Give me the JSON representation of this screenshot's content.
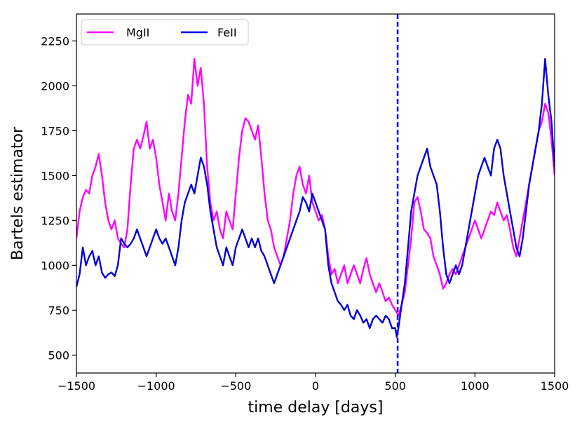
{
  "chart_data": {
    "type": "line",
    "xlabel": "time delay [days]",
    "ylabel": "Bartels estimator",
    "xlim": [
      -1500,
      1500
    ],
    "ylim": [
      400,
      2400
    ],
    "xticks": [
      -1500,
      -1000,
      -500,
      0,
      500,
      1000,
      1500
    ],
    "xtick_labels": [
      "−1500",
      "−1000",
      "−500",
      "0",
      "500",
      "1000",
      "1500"
    ],
    "yticks": [
      500,
      750,
      1000,
      1250,
      1500,
      1750,
      2000,
      2250
    ],
    "ytick_labels": [
      "500",
      "750",
      "1000",
      "1250",
      "1500",
      "1750",
      "2000",
      "2250"
    ],
    "grid": false,
    "legend": {
      "position": "top-left",
      "columns": 2
    },
    "vline": {
      "x": 515,
      "color": "#0000dd",
      "style": "dashed"
    },
    "series": [
      {
        "name": "MgII",
        "color": "#ff00ff",
        "points": [
          [
            -1500,
            1150
          ],
          [
            -1480,
            1300
          ],
          [
            -1460,
            1380
          ],
          [
            -1440,
            1420
          ],
          [
            -1420,
            1400
          ],
          [
            -1400,
            1500
          ],
          [
            -1380,
            1550
          ],
          [
            -1360,
            1620
          ],
          [
            -1340,
            1500
          ],
          [
            -1320,
            1350
          ],
          [
            -1300,
            1250
          ],
          [
            -1280,
            1200
          ],
          [
            -1260,
            1250
          ],
          [
            -1240,
            1150
          ],
          [
            -1220,
            1120
          ],
          [
            -1200,
            1100
          ],
          [
            -1180,
            1200
          ],
          [
            -1160,
            1450
          ],
          [
            -1140,
            1650
          ],
          [
            -1120,
            1700
          ],
          [
            -1100,
            1650
          ],
          [
            -1080,
            1720
          ],
          [
            -1060,
            1800
          ],
          [
            -1040,
            1650
          ],
          [
            -1020,
            1700
          ],
          [
            -1000,
            1600
          ],
          [
            -980,
            1450
          ],
          [
            -960,
            1350
          ],
          [
            -940,
            1250
          ],
          [
            -920,
            1400
          ],
          [
            -900,
            1300
          ],
          [
            -880,
            1250
          ],
          [
            -860,
            1400
          ],
          [
            -840,
            1600
          ],
          [
            -820,
            1800
          ],
          [
            -800,
            1950
          ],
          [
            -780,
            1900
          ],
          [
            -760,
            2150
          ],
          [
            -740,
            2000
          ],
          [
            -720,
            2100
          ],
          [
            -700,
            1900
          ],
          [
            -680,
            1550
          ],
          [
            -660,
            1350
          ],
          [
            -640,
            1250
          ],
          [
            -620,
            1300
          ],
          [
            -600,
            1200
          ],
          [
            -580,
            1150
          ],
          [
            -560,
            1300
          ],
          [
            -540,
            1250
          ],
          [
            -520,
            1200
          ],
          [
            -500,
            1400
          ],
          [
            -480,
            1600
          ],
          [
            -460,
            1750
          ],
          [
            -440,
            1820
          ],
          [
            -420,
            1800
          ],
          [
            -400,
            1750
          ],
          [
            -380,
            1700
          ],
          [
            -360,
            1780
          ],
          [
            -340,
            1600
          ],
          [
            -320,
            1400
          ],
          [
            -300,
            1250
          ],
          [
            -280,
            1200
          ],
          [
            -260,
            1100
          ],
          [
            -240,
            1050
          ],
          [
            -220,
            1000
          ],
          [
            -200,
            1050
          ],
          [
            -180,
            1150
          ],
          [
            -160,
            1250
          ],
          [
            -140,
            1400
          ],
          [
            -120,
            1500
          ],
          [
            -100,
            1550
          ],
          [
            -80,
            1450
          ],
          [
            -60,
            1400
          ],
          [
            -40,
            1500
          ],
          [
            -20,
            1350
          ],
          [
            0,
            1300
          ],
          [
            20,
            1250
          ],
          [
            40,
            1280
          ],
          [
            60,
            1200
          ],
          [
            80,
            1050
          ],
          [
            100,
            950
          ],
          [
            120,
            980
          ],
          [
            140,
            900
          ],
          [
            160,
            950
          ],
          [
            180,
            1000
          ],
          [
            200,
            900
          ],
          [
            220,
            950
          ],
          [
            240,
            1000
          ],
          [
            260,
            950
          ],
          [
            280,
            900
          ],
          [
            300,
            980
          ],
          [
            320,
            1040
          ],
          [
            340,
            950
          ],
          [
            360,
            900
          ],
          [
            380,
            850
          ],
          [
            400,
            900
          ],
          [
            420,
            850
          ],
          [
            440,
            800
          ],
          [
            460,
            820
          ],
          [
            480,
            780
          ],
          [
            500,
            750
          ],
          [
            520,
            720
          ],
          [
            540,
            780
          ],
          [
            560,
            850
          ],
          [
            580,
            1000
          ],
          [
            600,
            1150
          ],
          [
            620,
            1350
          ],
          [
            640,
            1380
          ],
          [
            660,
            1300
          ],
          [
            680,
            1200
          ],
          [
            700,
            1180
          ],
          [
            720,
            1150
          ],
          [
            740,
            1050
          ],
          [
            760,
            1000
          ],
          [
            780,
            950
          ],
          [
            800,
            870
          ],
          [
            820,
            900
          ],
          [
            840,
            950
          ],
          [
            860,
            980
          ],
          [
            880,
            950
          ],
          [
            900,
            1000
          ],
          [
            920,
            1050
          ],
          [
            940,
            1100
          ],
          [
            960,
            1150
          ],
          [
            980,
            1200
          ],
          [
            1000,
            1250
          ],
          [
            1020,
            1200
          ],
          [
            1040,
            1150
          ],
          [
            1060,
            1200
          ],
          [
            1080,
            1250
          ],
          [
            1100,
            1300
          ],
          [
            1120,
            1280
          ],
          [
            1140,
            1350
          ],
          [
            1160,
            1300
          ],
          [
            1180,
            1250
          ],
          [
            1200,
            1280
          ],
          [
            1220,
            1200
          ],
          [
            1240,
            1100
          ],
          [
            1260,
            1050
          ],
          [
            1280,
            1150
          ],
          [
            1300,
            1250
          ],
          [
            1320,
            1350
          ],
          [
            1340,
            1450
          ],
          [
            1360,
            1550
          ],
          [
            1380,
            1650
          ],
          [
            1400,
            1750
          ],
          [
            1420,
            1800
          ],
          [
            1440,
            1900
          ],
          [
            1460,
            1850
          ],
          [
            1480,
            1700
          ],
          [
            1500,
            1500
          ]
        ]
      },
      {
        "name": "FeII",
        "color": "#0000dd",
        "points": [
          [
            -1500,
            880
          ],
          [
            -1480,
            950
          ],
          [
            -1460,
            1100
          ],
          [
            -1440,
            1000
          ],
          [
            -1420,
            1050
          ],
          [
            -1400,
            1080
          ],
          [
            -1380,
            1000
          ],
          [
            -1360,
            1050
          ],
          [
            -1340,
            960
          ],
          [
            -1320,
            930
          ],
          [
            -1300,
            950
          ],
          [
            -1280,
            960
          ],
          [
            -1260,
            940
          ],
          [
            -1240,
            1000
          ],
          [
            -1220,
            1150
          ],
          [
            -1200,
            1120
          ],
          [
            -1180,
            1100
          ],
          [
            -1160,
            1120
          ],
          [
            -1140,
            1150
          ],
          [
            -1120,
            1200
          ],
          [
            -1100,
            1150
          ],
          [
            -1080,
            1100
          ],
          [
            -1060,
            1050
          ],
          [
            -1040,
            1100
          ],
          [
            -1020,
            1150
          ],
          [
            -1000,
            1200
          ],
          [
            -980,
            1150
          ],
          [
            -960,
            1120
          ],
          [
            -940,
            1150
          ],
          [
            -920,
            1100
          ],
          [
            -900,
            1050
          ],
          [
            -880,
            1000
          ],
          [
            -860,
            1100
          ],
          [
            -840,
            1250
          ],
          [
            -820,
            1350
          ],
          [
            -800,
            1400
          ],
          [
            -780,
            1450
          ],
          [
            -760,
            1400
          ],
          [
            -740,
            1500
          ],
          [
            -720,
            1600
          ],
          [
            -700,
            1550
          ],
          [
            -680,
            1450
          ],
          [
            -660,
            1300
          ],
          [
            -640,
            1200
          ],
          [
            -620,
            1100
          ],
          [
            -600,
            1050
          ],
          [
            -580,
            1000
          ],
          [
            -560,
            1100
          ],
          [
            -540,
            1050
          ],
          [
            -520,
            1000
          ],
          [
            -500,
            1100
          ],
          [
            -480,
            1150
          ],
          [
            -460,
            1200
          ],
          [
            -440,
            1150
          ],
          [
            -420,
            1100
          ],
          [
            -400,
            1150
          ],
          [
            -380,
            1100
          ],
          [
            -360,
            1150
          ],
          [
            -340,
            1080
          ],
          [
            -320,
            1050
          ],
          [
            -300,
            1000
          ],
          [
            -280,
            950
          ],
          [
            -260,
            900
          ],
          [
            -240,
            950
          ],
          [
            -220,
            1000
          ],
          [
            -200,
            1050
          ],
          [
            -180,
            1100
          ],
          [
            -160,
            1150
          ],
          [
            -140,
            1200
          ],
          [
            -120,
            1250
          ],
          [
            -100,
            1300
          ],
          [
            -80,
            1380
          ],
          [
            -60,
            1350
          ],
          [
            -40,
            1300
          ],
          [
            -20,
            1400
          ],
          [
            0,
            1350
          ],
          [
            20,
            1300
          ],
          [
            40,
            1250
          ],
          [
            60,
            1200
          ],
          [
            80,
            1000
          ],
          [
            100,
            900
          ],
          [
            120,
            850
          ],
          [
            140,
            800
          ],
          [
            160,
            780
          ],
          [
            180,
            750
          ],
          [
            200,
            780
          ],
          [
            220,
            720
          ],
          [
            240,
            700
          ],
          [
            260,
            750
          ],
          [
            280,
            720
          ],
          [
            300,
            680
          ],
          [
            320,
            700
          ],
          [
            340,
            650
          ],
          [
            360,
            700
          ],
          [
            380,
            720
          ],
          [
            400,
            700
          ],
          [
            420,
            680
          ],
          [
            440,
            720
          ],
          [
            460,
            700
          ],
          [
            480,
            650
          ],
          [
            500,
            650
          ],
          [
            510,
            600
          ],
          [
            520,
            650
          ],
          [
            540,
            780
          ],
          [
            560,
            900
          ],
          [
            580,
            1100
          ],
          [
            600,
            1300
          ],
          [
            620,
            1400
          ],
          [
            640,
            1500
          ],
          [
            660,
            1550
          ],
          [
            680,
            1600
          ],
          [
            700,
            1650
          ],
          [
            720,
            1550
          ],
          [
            740,
            1500
          ],
          [
            760,
            1450
          ],
          [
            780,
            1300
          ],
          [
            800,
            1100
          ],
          [
            820,
            950
          ],
          [
            840,
            900
          ],
          [
            860,
            950
          ],
          [
            880,
            1000
          ],
          [
            900,
            950
          ],
          [
            920,
            1000
          ],
          [
            940,
            1100
          ],
          [
            960,
            1200
          ],
          [
            980,
            1300
          ],
          [
            1000,
            1400
          ],
          [
            1020,
            1500
          ],
          [
            1040,
            1550
          ],
          [
            1060,
            1600
          ],
          [
            1080,
            1550
          ],
          [
            1100,
            1500
          ],
          [
            1120,
            1650
          ],
          [
            1140,
            1700
          ],
          [
            1160,
            1650
          ],
          [
            1180,
            1500
          ],
          [
            1200,
            1400
          ],
          [
            1220,
            1300
          ],
          [
            1240,
            1200
          ],
          [
            1260,
            1100
          ],
          [
            1280,
            1050
          ],
          [
            1300,
            1150
          ],
          [
            1320,
            1300
          ],
          [
            1340,
            1450
          ],
          [
            1360,
            1550
          ],
          [
            1380,
            1650
          ],
          [
            1400,
            1750
          ],
          [
            1420,
            1900
          ],
          [
            1440,
            2150
          ],
          [
            1460,
            1950
          ],
          [
            1480,
            1800
          ],
          [
            1500,
            1550
          ]
        ]
      }
    ]
  }
}
